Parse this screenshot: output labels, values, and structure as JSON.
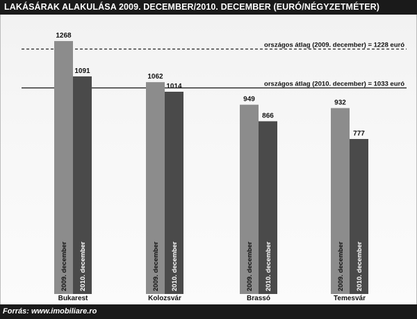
{
  "title": "LAKÁSÁRAK ALAKULÁSA 2009. DECEMBER/2010. DECEMBER (EURÓ/NÉGYZETMÉTER)",
  "source": "Forrás: www.imobiliare.ro",
  "colors": {
    "series_2009": "#8c8c8c",
    "series_2010": "#4a4a4a",
    "title_bg": "#1a1a1a",
    "reference_line": "#111111"
  },
  "chart_data": {
    "type": "bar",
    "categories": [
      "Bukarest",
      "Kolozsvár",
      "Brassó",
      "Temesvár"
    ],
    "series": [
      {
        "name": "2009. december",
        "values": [
          1268,
          1062,
          949,
          932
        ]
      },
      {
        "name": "2010. december",
        "values": [
          1091,
          1014,
          866,
          777
        ]
      }
    ],
    "reference_lines": [
      {
        "label": "országos átlag (2009. december) = 1228 euró",
        "value": 1228,
        "style": "dashed"
      },
      {
        "label": "országos átlag (2010. december) = 1033 euró",
        "value": 1033,
        "style": "solid"
      }
    ],
    "ylim": [
      0,
      1338
    ],
    "grid": false,
    "legend": "none"
  }
}
